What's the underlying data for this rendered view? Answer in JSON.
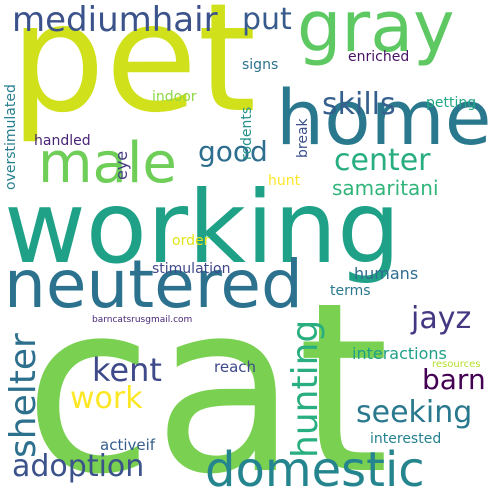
{
  "cloud": {
    "pet": "pet",
    "cat": "cat",
    "working": "working",
    "home": "home",
    "neutered": "neutered",
    "gray": "gray",
    "domestic": "domestic",
    "male": "male",
    "mediumhair": "mediumhair",
    "jayz": "jayz",
    "barn": "barn",
    "shelter": "shelter",
    "kent": "kent",
    "hunting": "hunting",
    "seeking": "seeking",
    "adoption": "adoption",
    "work": "work",
    "center": "center",
    "skills": "skills",
    "good": "good",
    "put": "put",
    "samaritani": "samaritani",
    "interactions": "interactions",
    "humans": "humans",
    "reach": "reach",
    "activeif": "activeif",
    "interested": "interested",
    "stimulation": "stimulation",
    "handled": "handled",
    "overstimulated": "overstimulated",
    "order": "order",
    "hunt": "hunt",
    "eye": "eye",
    "rodents": "rodents",
    "break": "break",
    "enriched": "enriched",
    "petting": "petting",
    "signs": "signs",
    "indoor": "indoor",
    "terms": "terms",
    "email": "barncatsrusgmail.com",
    "resources": "resources"
  },
  "colors": {
    "background": "#ffffff",
    "palette": "viridis"
  }
}
